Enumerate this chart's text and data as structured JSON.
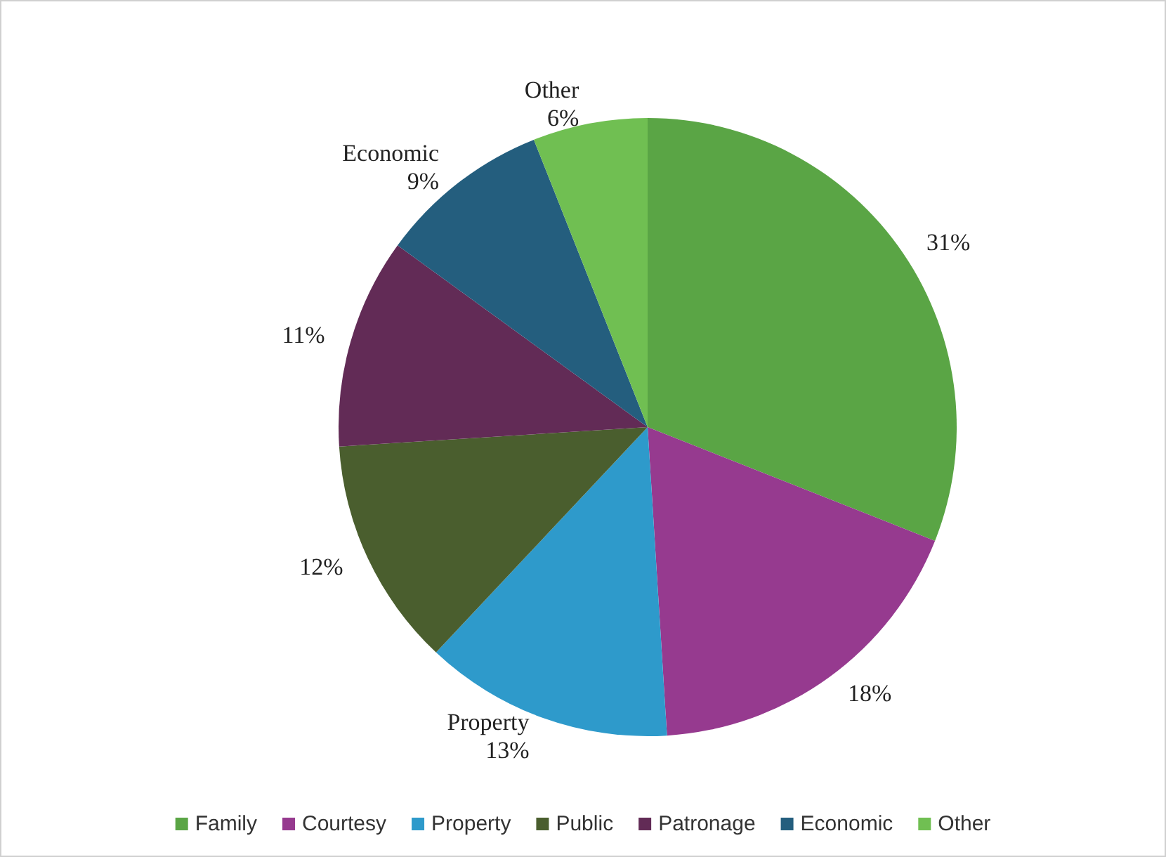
{
  "chart_data": {
    "type": "pie",
    "categories": [
      "Family",
      "Courtesy",
      "Property",
      "Public",
      "Patronage",
      "Economic",
      "Other"
    ],
    "values": [
      31,
      18,
      13,
      12,
      11,
      9,
      6
    ],
    "colors": [
      "#5aa545",
      "#963a8f",
      "#2e9acb",
      "#4a5e2e",
      "#622b56",
      "#245e7e",
      "#70bf52"
    ],
    "value_labels": [
      "31%",
      "18%",
      "Property\n13%",
      "12%",
      "11%",
      "Economic\n9%",
      "Other\n6%"
    ],
    "legend": "bottom"
  }
}
